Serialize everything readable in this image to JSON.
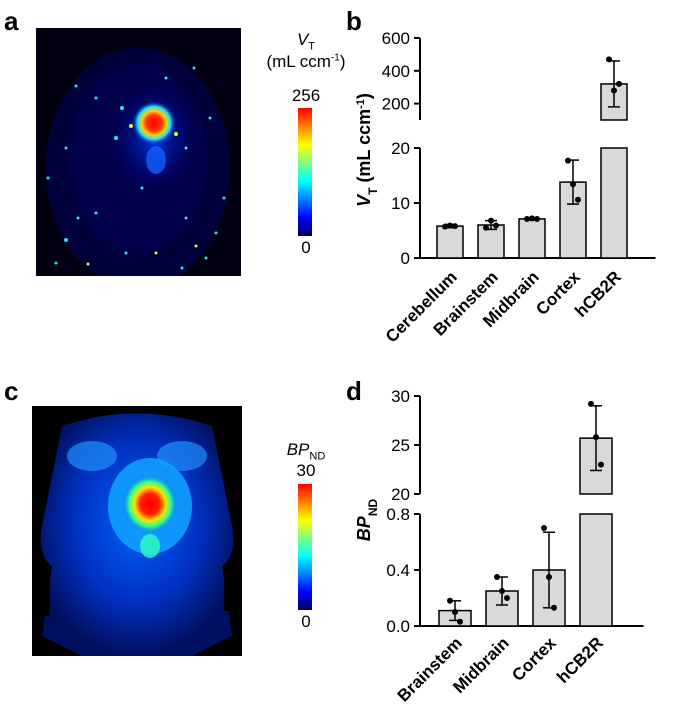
{
  "panels": {
    "a": "a",
    "b": "b",
    "c": "c",
    "d": "d"
  },
  "colorbar_a": {
    "label_symbol": "V",
    "label_sub": "T",
    "unit": "(mL ccm",
    "unit_sup": "-1",
    "unit_close": ")",
    "max": "256",
    "min": "0"
  },
  "colorbar_c": {
    "label_symbol": "BP",
    "label_sub": "ND",
    "max": "30",
    "min": "0"
  },
  "colormap": "jet",
  "chart_data": [
    {
      "panel": "b",
      "type": "bar",
      "categories": [
        "Cerebellum",
        "Brainstem",
        "Midbrain",
        "Cortex",
        "hCB2R"
      ],
      "values": [
        5.8,
        6.0,
        7.1,
        13.8,
        320
      ],
      "error": [
        0.3,
        0.8,
        0.2,
        4.0,
        140
      ],
      "points": [
        [
          5.7,
          5.9,
          5.8
        ],
        [
          5.5,
          6.8,
          5.9
        ],
        [
          7.1,
          7.2,
          7.1
        ],
        [
          17.7,
          13.4,
          10.6
        ],
        [
          470,
          280,
          320
        ]
      ],
      "ylabel_symbol": "V",
      "ylabel_sub": "T",
      "ylabel_unit": "(mL   ccm",
      "ylabel_sup": "-1",
      "ylabel_close": ")",
      "y_lower_range": [
        0,
        20
      ],
      "y_lower_ticks": [
        "0",
        "10",
        "20"
      ],
      "y_upper_range": [
        100,
        600
      ],
      "y_upper_ticks": [
        "200",
        "400",
        "600"
      ],
      "axis_break": true,
      "bar_color": "#d9d9d9"
    },
    {
      "panel": "d",
      "type": "bar",
      "categories": [
        "Brainstem",
        "Midbrain",
        "Cortex",
        "hCB2R"
      ],
      "values": [
        0.11,
        0.25,
        0.4,
        25.7
      ],
      "error": [
        0.07,
        0.1,
        0.27,
        3.3
      ],
      "points": [
        [
          0.18,
          0.1,
          0.03
        ],
        [
          0.35,
          0.25,
          0.2
        ],
        [
          0.7,
          0.35,
          0.13
        ],
        [
          29.2,
          25.8,
          23.0
        ]
      ],
      "ylabel_symbol": "BP",
      "ylabel_sub": "ND",
      "y_lower_range": [
        0,
        0.8
      ],
      "y_lower_ticks": [
        "0.0",
        "0.4",
        "0.8"
      ],
      "y_upper_range": [
        20,
        30
      ],
      "y_upper_ticks": [
        "20",
        "25",
        "30"
      ],
      "axis_break": true,
      "bar_color": "#d9d9d9"
    }
  ]
}
